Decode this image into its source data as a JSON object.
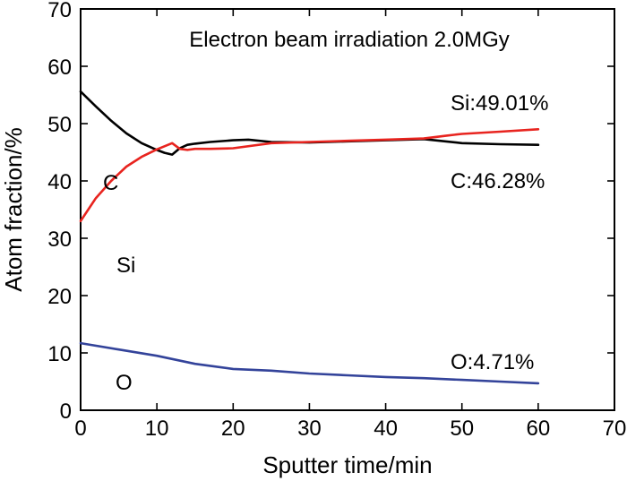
{
  "chart_data": {
    "type": "line",
    "title": "Electron beam irradiation 2.0MGy",
    "xlabel": "Sputter time/min",
    "ylabel": "Atom fraction/%",
    "xlim": [
      0,
      70
    ],
    "ylim": [
      0,
      70
    ],
    "xticks": [
      "0",
      "10",
      "20",
      "30",
      "40",
      "50",
      "60",
      "70"
    ],
    "yticks": [
      "0",
      "10",
      "20",
      "30",
      "40",
      "50",
      "60",
      "70"
    ],
    "grid": false,
    "legend": "none",
    "series": [
      {
        "name": "C",
        "color": "#000000",
        "x": [
          0,
          2,
          4,
          6,
          8,
          10,
          11,
          12,
          13,
          14,
          15,
          17,
          20,
          22,
          25,
          30,
          35,
          40,
          45,
          50,
          55,
          60
        ],
        "y": [
          55.6,
          53.0,
          50.5,
          48.3,
          46.6,
          45.4,
          44.9,
          44.6,
          45.7,
          46.3,
          46.5,
          46.8,
          47.1,
          47.2,
          46.8,
          46.7,
          46.9,
          47.1,
          47.3,
          46.6,
          46.4,
          46.3
        ]
      },
      {
        "name": "Si",
        "color": "#e8241f",
        "x": [
          0,
          1,
          2,
          4,
          6,
          8,
          10,
          12,
          13,
          14,
          15,
          17,
          20,
          25,
          30,
          35,
          40,
          45,
          48,
          50,
          55,
          60
        ],
        "y": [
          33.0,
          35.0,
          37.0,
          40.0,
          42.5,
          44.2,
          45.5,
          46.6,
          45.6,
          45.4,
          45.6,
          45.6,
          45.7,
          46.6,
          46.8,
          47.0,
          47.2,
          47.4,
          47.9,
          48.2,
          48.6,
          49.01
        ]
      },
      {
        "name": "O",
        "color": "#33439a",
        "x": [
          0,
          5,
          10,
          15,
          20,
          25,
          30,
          35,
          40,
          45,
          50,
          55,
          60
        ],
        "y": [
          11.7,
          10.6,
          9.5,
          8.1,
          7.2,
          6.9,
          6.4,
          6.1,
          5.8,
          5.6,
          5.3,
          5.0,
          4.71
        ]
      }
    ],
    "annotations": {
      "si_end": "Si:49.01%",
      "c_end": "C:46.28%",
      "o_end": "O:4.71%",
      "c_label": "C",
      "si_label": "Si",
      "o_label": "O"
    }
  }
}
